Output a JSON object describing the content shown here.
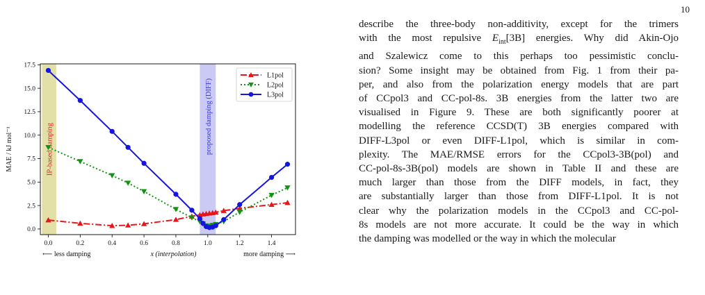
{
  "page_number": "10",
  "paragraph_lines": [
    "describe the three-body non-additivity, except for the trimers",
    "with the most repulsive E_int[3B] energies. Why did Akin-Ojo",
    "and Szalewicz come to this perhaps too pessimistic conclu-",
    "sion? Some insight may be obtained from Fig. 1 from their pa-",
    "per, and also from the polarization energy models that are part",
    "of CCpol3 and CC-pol-8s. 3B energies from the latter two are",
    "visualised in Figure 9. These are both significantly poorer at",
    "modelling the reference CCSD(T) 3B energies compared with",
    "DIFF-L3pol or even DIFF-L1pol, which is similar in com-",
    "plexity. The MAE/RMSE errors for the CCpol3-3B(pol) and",
    "CC-pol-8s-3B(pol) models are shown in Table II and these are",
    "much larger than those from the DIFF models, in fact, they",
    "are substantially larger than those from DIFF-L1pol. It is not",
    "clear why the polarization models in the CCpol3 and CC-pol-",
    "8s models are not more accurate. It could be the way in which",
    "the damping was modelled or the way in which the molecular"
  ],
  "chart_data": {
    "type": "line",
    "title": "",
    "ylabel": "MAE / kJ mol⁻¹",
    "xlabel": "x (interpolation)",
    "xlabel_left": "⟵ less damping",
    "xlabel_right": "more damping ⟶",
    "xlim": [
      -0.05,
      1.55
    ],
    "ylim": [
      -0.6,
      17.6
    ],
    "xticks": [
      0.0,
      0.2,
      0.4,
      0.6,
      0.8,
      1.0,
      1.2,
      1.4
    ],
    "xtick_labels": [
      "0.0",
      "0.2",
      "0.4",
      "0.6",
      "0.8",
      "1.0",
      "1.2",
      "1.4"
    ],
    "yticks": [
      0.0,
      2.5,
      5.0,
      7.5,
      10.0,
      12.5,
      15.0,
      17.5
    ],
    "ytick_labels": [
      "0.0",
      "2.5",
      "5.0",
      "7.5",
      "10.0",
      "12.5",
      "15.0",
      "17.5"
    ],
    "legend_position": "top-right",
    "regions": [
      {
        "label": "IP-based damping",
        "x0": -0.04,
        "x1": 0.05,
        "color": "#d8d58a",
        "text_color": "#d62728"
      },
      {
        "label": "proposed damping (DIFF)",
        "x0": 0.95,
        "x1": 1.05,
        "color": "#b8b8f0",
        "text_color": "#3a3ad6"
      }
    ],
    "series": [
      {
        "name": "L1pol",
        "color": "#e8151b",
        "dash": "9,3,2,3",
        "marker": "triangle-up",
        "x": [
          0.0,
          0.2,
          0.4,
          0.5,
          0.6,
          0.8,
          0.9,
          0.95,
          0.97,
          0.99,
          1.01,
          1.03,
          1.05,
          1.1,
          1.2,
          1.4,
          1.5
        ],
        "y": [
          0.95,
          0.6,
          0.35,
          0.4,
          0.55,
          1.0,
          1.35,
          1.5,
          1.58,
          1.63,
          1.68,
          1.72,
          1.78,
          1.95,
          2.2,
          2.6,
          2.8
        ]
      },
      {
        "name": "L2pol",
        "color": "#129412",
        "dash": "2,3",
        "marker": "triangle-down",
        "x": [
          0.0,
          0.2,
          0.4,
          0.5,
          0.6,
          0.8,
          0.9,
          0.95,
          0.97,
          0.99,
          1.01,
          1.03,
          1.05,
          1.1,
          1.2,
          1.4,
          1.5
        ],
        "y": [
          8.7,
          7.2,
          5.7,
          4.9,
          4.0,
          2.1,
          1.2,
          0.8,
          0.55,
          0.35,
          0.3,
          0.4,
          0.5,
          0.8,
          1.8,
          3.6,
          4.4
        ]
      },
      {
        "name": "L3pol",
        "color": "#1515e0",
        "dash": "",
        "marker": "circle",
        "x": [
          0.0,
          0.2,
          0.4,
          0.5,
          0.6,
          0.8,
          0.9,
          0.95,
          0.97,
          0.99,
          1.01,
          1.03,
          1.05,
          1.1,
          1.2,
          1.4,
          1.5
        ],
        "y": [
          16.9,
          13.7,
          10.4,
          8.7,
          7.0,
          3.7,
          2.0,
          1.1,
          0.6,
          0.25,
          0.15,
          0.2,
          0.35,
          1.0,
          2.6,
          5.5,
          6.9
        ]
      }
    ]
  }
}
